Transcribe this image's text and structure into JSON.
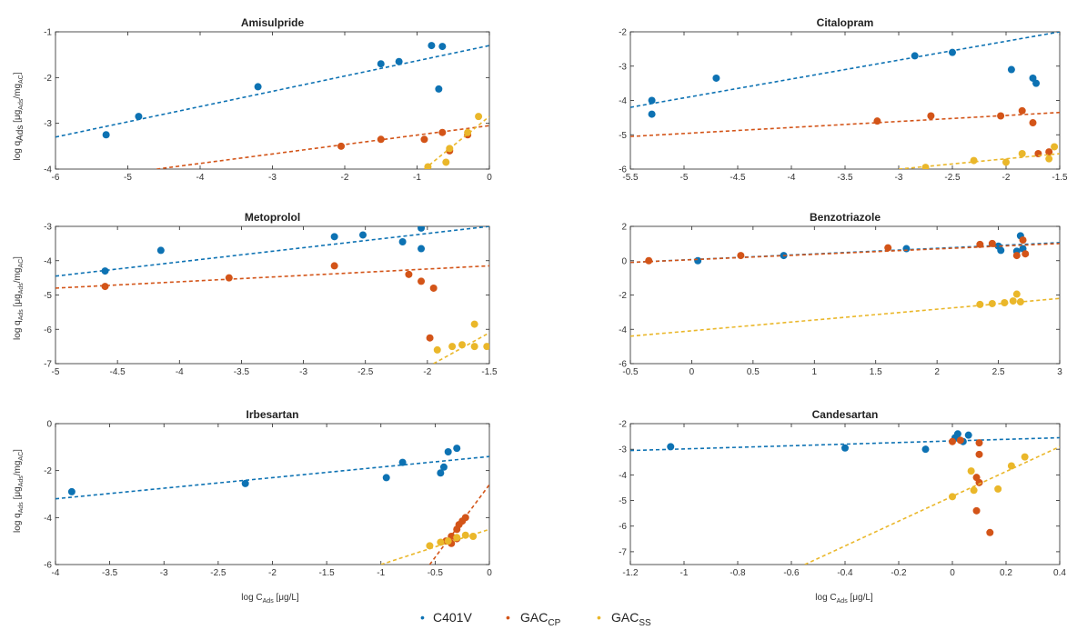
{
  "colors": {
    "C401V": "#0d72b3",
    "GAC_CP": "#d35418",
    "GAC_SS": "#eab72a"
  },
  "labels": {
    "ylabel_a": "log q",
    "ylabel_sub1": "Ads",
    "ylabel_b": " [μg",
    "ylabel_sub2": "Ads",
    "ylabel_c": "/mg",
    "ylabel_sub3": "AC",
    "ylabel_d": "]",
    "xlabel_a": "log C",
    "xlabel_sub": "Ads",
    "xlabel_b": " [μg/L]"
  },
  "legend": [
    {
      "key": "C401V",
      "main": "C401V",
      "sub": ""
    },
    {
      "key": "GAC_CP",
      "main": "GAC",
      "sub": "CP"
    },
    {
      "key": "GAC_SS",
      "main": "GAC",
      "sub": "SS"
    }
  ],
  "chart_data": [
    {
      "type": "scatter",
      "title": "Amisulpride",
      "xlim": [
        -6,
        0
      ],
      "ylim": [
        -4,
        -1
      ],
      "xticks": [
        "-6",
        "-5",
        "-4",
        "-3",
        "-2",
        "-1",
        "0"
      ],
      "yticks": [
        "-4",
        "-3",
        "-2",
        "-1"
      ],
      "xtick_values": [
        -6,
        -5,
        -4,
        -3,
        -2,
        -1,
        0
      ],
      "ytick_values": [
        -4,
        -3,
        -2,
        -1
      ],
      "series": [
        {
          "key": "C401V",
          "points": [
            [
              -5.3,
              -3.25
            ],
            [
              -4.85,
              -2.85
            ],
            [
              -3.2,
              -2.2
            ],
            [
              -1.5,
              -1.7
            ],
            [
              -1.25,
              -1.65
            ],
            [
              -0.8,
              -1.3
            ],
            [
              -0.65,
              -1.32
            ],
            [
              -0.7,
              -2.25
            ]
          ],
          "fit": [
            [
              -6,
              -3.3
            ],
            [
              0,
              -1.3
            ]
          ]
        },
        {
          "key": "GAC_CP",
          "points": [
            [
              -2.05,
              -3.5
            ],
            [
              -1.5,
              -3.35
            ],
            [
              -0.9,
              -3.35
            ],
            [
              -0.65,
              -3.2
            ],
            [
              -0.55,
              -3.6
            ],
            [
              -0.3,
              -3.25
            ]
          ],
          "fit": [
            [
              -4.6,
              -4
            ],
            [
              0,
              -3.05
            ]
          ]
        },
        {
          "key": "GAC_SS",
          "points": [
            [
              -0.85,
              -3.95
            ],
            [
              -0.6,
              -3.85
            ],
            [
              -0.55,
              -3.55
            ],
            [
              -0.3,
              -3.2
            ],
            [
              -0.15,
              -2.85
            ]
          ],
          "fit": [
            [
              -0.9,
              -4
            ],
            [
              0,
              -2.85
            ]
          ]
        }
      ]
    },
    {
      "type": "scatter",
      "title": "Citalopram",
      "xlim": [
        -5.5,
        -1.5
      ],
      "ylim": [
        -6,
        -2
      ],
      "xticks": [
        "-5.5",
        "-5",
        "-4.5",
        "-4",
        "-3.5",
        "-3",
        "-2.5",
        "-2",
        "-1.5"
      ],
      "yticks": [
        "-6",
        "-5",
        "-4",
        "-3",
        "-2"
      ],
      "xtick_values": [
        -5.5,
        -5,
        -4.5,
        -4,
        -3.5,
        -3,
        -2.5,
        -2,
        -1.5
      ],
      "ytick_values": [
        -6,
        -5,
        -4,
        -3,
        -2
      ],
      "series": [
        {
          "key": "C401V",
          "points": [
            [
              -5.3,
              -4.0
            ],
            [
              -5.3,
              -4.4
            ],
            [
              -4.7,
              -3.35
            ],
            [
              -2.85,
              -2.7
            ],
            [
              -2.5,
              -2.6
            ],
            [
              -1.95,
              -3.1
            ],
            [
              -1.75,
              -3.35
            ],
            [
              -1.72,
              -3.5
            ]
          ],
          "fit": [
            [
              -5.5,
              -4.2
            ],
            [
              -1.5,
              -2.0
            ]
          ]
        },
        {
          "key": "GAC_CP",
          "points": [
            [
              -3.2,
              -4.6
            ],
            [
              -2.7,
              -4.45
            ],
            [
              -2.05,
              -4.45
            ],
            [
              -1.85,
              -4.3
            ],
            [
              -1.75,
              -4.65
            ],
            [
              -1.7,
              -5.55
            ],
            [
              -1.6,
              -5.5
            ]
          ],
          "fit": [
            [
              -5.5,
              -5.05
            ],
            [
              -1.5,
              -4.35
            ]
          ]
        },
        {
          "key": "GAC_SS",
          "points": [
            [
              -2.75,
              -5.95
            ],
            [
              -2.3,
              -5.75
            ],
            [
              -2.0,
              -5.8
            ],
            [
              -1.85,
              -5.55
            ],
            [
              -1.6,
              -5.7
            ],
            [
              -1.55,
              -5.35
            ]
          ],
          "fit": [
            [
              -3.0,
              -6
            ],
            [
              -1.5,
              -5.55
            ]
          ]
        }
      ]
    },
    {
      "type": "scatter",
      "title": "Metoprolol",
      "xlim": [
        -5,
        -1.5
      ],
      "ylim": [
        -7,
        -3
      ],
      "xticks": [
        "-5",
        "-4.5",
        "-4",
        "-3.5",
        "-3",
        "-2.5",
        "-2",
        "-1.5"
      ],
      "yticks": [
        "-7",
        "-6",
        "-5",
        "-4",
        "-3"
      ],
      "xtick_values": [
        -5,
        -4.5,
        -4,
        -3.5,
        -3,
        -2.5,
        -2,
        -1.5
      ],
      "ytick_values": [
        -7,
        -6,
        -5,
        -4,
        -3
      ],
      "series": [
        {
          "key": "C401V",
          "points": [
            [
              -4.6,
              -4.3
            ],
            [
              -4.15,
              -3.7
            ],
            [
              -2.75,
              -3.3
            ],
            [
              -2.52,
              -3.25
            ],
            [
              -2.2,
              -3.45
            ],
            [
              -2.05,
              -3.05
            ],
            [
              -2.05,
              -3.65
            ]
          ],
          "fit": [
            [
              -5,
              -4.45
            ],
            [
              -1.5,
              -3.0
            ]
          ]
        },
        {
          "key": "GAC_CP",
          "points": [
            [
              -4.6,
              -4.75
            ],
            [
              -3.6,
              -4.5
            ],
            [
              -2.75,
              -4.15
            ],
            [
              -2.15,
              -4.4
            ],
            [
              -2.05,
              -4.6
            ],
            [
              -1.95,
              -4.8
            ],
            [
              -1.98,
              -6.25
            ]
          ],
          "fit": [
            [
              -5,
              -4.8
            ],
            [
              -1.5,
              -4.15
            ]
          ]
        },
        {
          "key": "GAC_SS",
          "points": [
            [
              -1.92,
              -6.6
            ],
            [
              -1.8,
              -6.5
            ],
            [
              -1.72,
              -6.45
            ],
            [
              -1.62,
              -6.5
            ],
            [
              -1.62,
              -5.85
            ],
            [
              -1.52,
              -6.5
            ]
          ],
          "fit": [
            [
              -1.95,
              -7
            ],
            [
              -1.5,
              -6.1
            ]
          ]
        }
      ]
    },
    {
      "type": "scatter",
      "title": "Benzotriazole",
      "xlim": [
        -0.5,
        3
      ],
      "ylim": [
        -6,
        2
      ],
      "xticks": [
        "-0.5",
        "0",
        "0.5",
        "1",
        "1.5",
        "2",
        "2.5",
        "3"
      ],
      "yticks": [
        "-6",
        "-4",
        "-2",
        "0",
        "2"
      ],
      "xtick_values": [
        -0.5,
        0,
        0.5,
        1,
        1.5,
        2,
        2.5,
        3
      ],
      "ytick_values": [
        -6,
        -4,
        -2,
        0,
        2
      ],
      "series": [
        {
          "key": "C401V",
          "points": [
            [
              0.05,
              0.0
            ],
            [
              0.75,
              0.3
            ],
            [
              1.75,
              0.7
            ],
            [
              2.5,
              0.85
            ],
            [
              2.52,
              0.6
            ],
            [
              2.65,
              0.55
            ],
            [
              2.68,
              1.45
            ],
            [
              2.7,
              0.7
            ]
          ],
          "fit": [
            [
              -0.5,
              -0.1
            ],
            [
              3,
              1.05
            ]
          ]
        },
        {
          "key": "GAC_CP",
          "points": [
            [
              -0.35,
              0.0
            ],
            [
              0.4,
              0.3
            ],
            [
              1.6,
              0.75
            ],
            [
              2.35,
              0.95
            ],
            [
              2.45,
              1.0
            ],
            [
              2.65,
              0.3
            ],
            [
              2.7,
              1.2
            ],
            [
              2.72,
              0.4
            ]
          ],
          "fit": [
            [
              -0.5,
              -0.1
            ],
            [
              3,
              1.0
            ]
          ]
        },
        {
          "key": "GAC_SS",
          "points": [
            [
              2.35,
              -2.55
            ],
            [
              2.45,
              -2.5
            ],
            [
              2.55,
              -2.45
            ],
            [
              2.62,
              -2.35
            ],
            [
              2.65,
              -1.95
            ],
            [
              2.68,
              -2.4
            ]
          ],
          "fit": [
            [
              -0.5,
              -4.4
            ],
            [
              3,
              -2.2
            ]
          ]
        }
      ]
    },
    {
      "type": "scatter",
      "title": "Irbesartan",
      "xlim": [
        -4,
        0
      ],
      "ylim": [
        -6,
        0
      ],
      "xticks": [
        "-4",
        "-3.5",
        "-3",
        "-2.5",
        "-2",
        "-1.5",
        "-1",
        "-0.5",
        "0"
      ],
      "yticks": [
        "-6",
        "-4",
        "-2",
        "0"
      ],
      "xtick_values": [
        -4,
        -3.5,
        -3,
        -2.5,
        -2,
        -1.5,
        -1,
        -0.5,
        0
      ],
      "ytick_values": [
        -6,
        -4,
        -2,
        0
      ],
      "series": [
        {
          "key": "C401V",
          "points": [
            [
              -3.85,
              -2.9
            ],
            [
              -2.25,
              -2.55
            ],
            [
              -0.95,
              -2.3
            ],
            [
              -0.8,
              -1.65
            ],
            [
              -0.45,
              -2.1
            ],
            [
              -0.42,
              -1.85
            ],
            [
              -0.38,
              -1.2
            ],
            [
              -0.3,
              -1.05
            ]
          ],
          "fit": [
            [
              -4,
              -3.2
            ],
            [
              0,
              -1.4
            ]
          ]
        },
        {
          "key": "GAC_CP",
          "points": [
            [
              -0.4,
              -5.0
            ],
            [
              -0.35,
              -4.8
            ],
            [
              -0.3,
              -4.5
            ],
            [
              -0.28,
              -4.3
            ],
            [
              -0.25,
              -4.15
            ],
            [
              -0.22,
              -4.0
            ],
            [
              -0.35,
              -5.1
            ],
            [
              -0.3,
              -4.9
            ]
          ],
          "fit": [
            [
              -0.55,
              -6
            ],
            [
              0,
              -2.6
            ]
          ]
        },
        {
          "key": "GAC_SS",
          "points": [
            [
              -0.55,
              -5.2
            ],
            [
              -0.45,
              -5.05
            ],
            [
              -0.38,
              -5.0
            ],
            [
              -0.3,
              -4.85
            ],
            [
              -0.22,
              -4.75
            ],
            [
              -0.15,
              -4.8
            ]
          ],
          "fit": [
            [
              -1.0,
              -6
            ],
            [
              0,
              -4.5
            ]
          ]
        }
      ]
    },
    {
      "type": "scatter",
      "title": "Candesartan",
      "xlim": [
        -1.2,
        0.4
      ],
      "ylim": [
        -7.5,
        -2
      ],
      "xticks": [
        "-1.2",
        "-1",
        "-0.8",
        "-0.6",
        "-0.4",
        "-0.2",
        "0",
        "0.2",
        "0.4"
      ],
      "yticks": [
        "-7",
        "-6",
        "-5",
        "-4",
        "-3",
        "-2"
      ],
      "xtick_values": [
        -1.2,
        -1,
        -0.8,
        -0.6,
        -0.4,
        -0.2,
        0,
        0.2,
        0.4
      ],
      "ytick_values": [
        -7,
        -6,
        -5,
        -4,
        -3,
        -2
      ],
      "series": [
        {
          "key": "C401V",
          "points": [
            [
              -1.05,
              -2.9
            ],
            [
              -0.4,
              -2.95
            ],
            [
              -0.1,
              -3.0
            ],
            [
              0.01,
              -2.55
            ],
            [
              0.02,
              -2.4
            ],
            [
              0.06,
              -2.45
            ],
            [
              0.04,
              -2.7
            ]
          ],
          "fit": [
            [
              -1.2,
              -3.05
            ],
            [
              0.4,
              -2.55
            ]
          ]
        },
        {
          "key": "GAC_CP",
          "points": [
            [
              0.0,
              -2.7
            ],
            [
              0.03,
              -2.65
            ],
            [
              0.1,
              -2.75
            ],
            [
              0.1,
              -3.2
            ],
            [
              0.09,
              -4.1
            ],
            [
              0.1,
              -4.3
            ],
            [
              0.09,
              -5.4
            ],
            [
              0.14,
              -6.25
            ]
          ],
          "fit": null
        },
        {
          "key": "GAC_SS",
          "points": [
            [
              0.0,
              -4.85
            ],
            [
              0.07,
              -3.85
            ],
            [
              0.08,
              -4.6
            ],
            [
              0.17,
              -4.55
            ],
            [
              0.22,
              -3.65
            ],
            [
              0.27,
              -3.3
            ]
          ],
          "fit": [
            [
              -0.55,
              -7.5
            ],
            [
              0.4,
              -2.9
            ]
          ]
        }
      ]
    }
  ]
}
